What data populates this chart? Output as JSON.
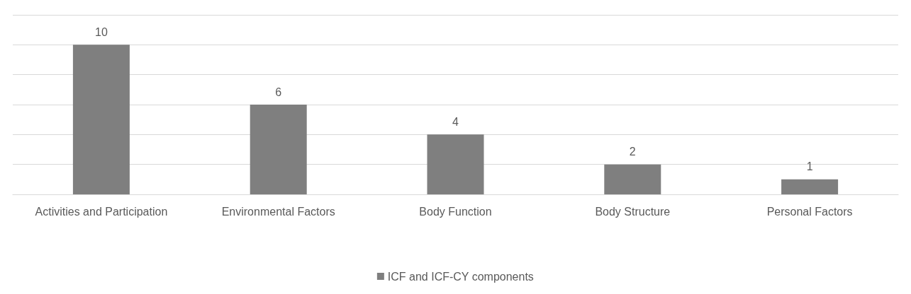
{
  "chart_data": {
    "type": "bar",
    "categories": [
      "Activities and Participation",
      "Environmental Factors",
      "Body Function",
      "Body Structure",
      "Personal Factors"
    ],
    "series": [
      {
        "name": "ICF and ICF-CY components",
        "color": "#7f7f7f",
        "values": [
          10,
          6,
          4,
          2,
          1
        ]
      }
    ],
    "ylim": [
      0,
      12
    ],
    "yticks": [
      {
        "value": 0,
        "label": null
      },
      {
        "value": 2,
        "label": null
      },
      {
        "value": 4,
        "label": null
      },
      {
        "value": 6,
        "label": null
      },
      {
        "value": 8,
        "label": null
      },
      {
        "value": 10,
        "label": null
      },
      {
        "value": 12,
        "label": null
      }
    ],
    "tick_labels": "x",
    "grid": "y",
    "legend": "bottom",
    "data_labels": true
  }
}
